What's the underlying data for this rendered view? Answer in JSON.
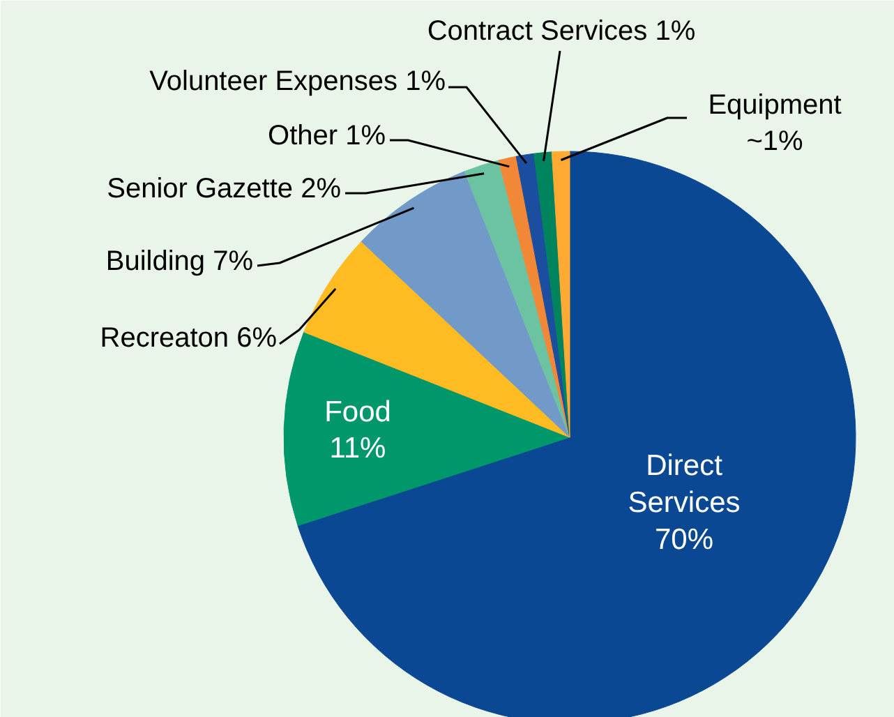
{
  "chart_data": {
    "type": "pie",
    "categories": [
      "Direct Services",
      "Food",
      "Recreaton",
      "Building",
      "Senior Gazette",
      "Other",
      "Volunteer Expenses",
      "Contract Services",
      "Equipment"
    ],
    "values": [
      70,
      11,
      6,
      7,
      2,
      1,
      1,
      1,
      1
    ],
    "value_labels": [
      "70%",
      "11%",
      "6%",
      "7%",
      "2%",
      "1%",
      "1%",
      "1%",
      "~1%"
    ],
    "colors": [
      "#0b4893",
      "#00976a",
      "#ffbb22",
      "#729ac8",
      "#6cc3a2",
      "#f08838",
      "#1c4ea0",
      "#00845e",
      "#ffaa33"
    ]
  }
}
